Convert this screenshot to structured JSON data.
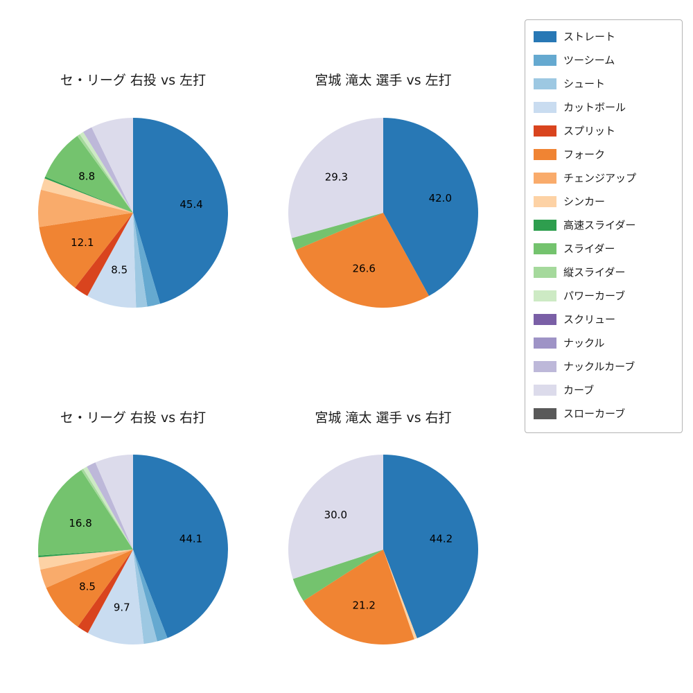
{
  "page": {
    "background": "#ffffff"
  },
  "legend": {
    "items": [
      {
        "label": "ストレート",
        "color": "#2878b5"
      },
      {
        "label": "ツーシーム",
        "color": "#65a9d0"
      },
      {
        "label": "シュート",
        "color": "#9dc8e2"
      },
      {
        "label": "カットボール",
        "color": "#c9dcf0"
      },
      {
        "label": "スプリット",
        "color": "#d9441e"
      },
      {
        "label": "フォーク",
        "color": "#f08433"
      },
      {
        "label": "チェンジアップ",
        "color": "#f9ab6b"
      },
      {
        "label": "シンカー",
        "color": "#fdd2a5"
      },
      {
        "label": "高速スライダー",
        "color": "#2e9e4e"
      },
      {
        "label": "スライダー",
        "color": "#74c36e"
      },
      {
        "label": "縦スライダー",
        "color": "#a5d99c"
      },
      {
        "label": "パワーカーブ",
        "color": "#cdeac4"
      },
      {
        "label": "スクリュー",
        "color": "#7a5fa6"
      },
      {
        "label": "ナックル",
        "color": "#9e93c6"
      },
      {
        "label": "ナックルカーブ",
        "color": "#bdb8d9"
      },
      {
        "label": "カーブ",
        "color": "#dcdbeb"
      },
      {
        "label": "スローカーブ",
        "color": "#595959"
      }
    ]
  },
  "chart_data": [
    {
      "type": "pie",
      "title": "セ・リーグ 右投 vs 左打",
      "start_angle": "top",
      "direction": "clockwise",
      "label_threshold": 8,
      "slices": [
        {
          "name": "ストレート",
          "value": 45.4
        },
        {
          "name": "ツーシーム",
          "value": 2.2
        },
        {
          "name": "シュート",
          "value": 1.9
        },
        {
          "name": "カットボール",
          "value": 8.5
        },
        {
          "name": "スプリット",
          "value": 2.5
        },
        {
          "name": "フォーク",
          "value": 12.1
        },
        {
          "name": "チェンジアップ",
          "value": 6.3
        },
        {
          "name": "シンカー",
          "value": 2.0
        },
        {
          "name": "高速スライダー",
          "value": 0.3
        },
        {
          "name": "スライダー",
          "value": 8.8
        },
        {
          "name": "縦スライダー",
          "value": 0.5
        },
        {
          "name": "パワーカーブ",
          "value": 0.7
        },
        {
          "name": "ナックルカーブ",
          "value": 1.6
        },
        {
          "name": "カーブ",
          "value": 7.2
        }
      ]
    },
    {
      "type": "pie",
      "title": "宮城 滝太 選手 vs 左打",
      "start_angle": "top",
      "direction": "clockwise",
      "label_threshold": 8,
      "slices": [
        {
          "name": "ストレート",
          "value": 42.0
        },
        {
          "name": "フォーク",
          "value": 26.6
        },
        {
          "name": "スライダー",
          "value": 2.1
        },
        {
          "name": "カーブ",
          "value": 29.3
        }
      ]
    },
    {
      "type": "pie",
      "title": "セ・リーグ 右投 vs 右打",
      "start_angle": "top",
      "direction": "clockwise",
      "label_threshold": 8,
      "slices": [
        {
          "name": "ストレート",
          "value": 44.1
        },
        {
          "name": "ツーシーム",
          "value": 1.8
        },
        {
          "name": "シュート",
          "value": 2.3
        },
        {
          "name": "カットボール",
          "value": 9.7
        },
        {
          "name": "スプリット",
          "value": 2.0
        },
        {
          "name": "フォーク",
          "value": 8.5
        },
        {
          "name": "チェンジアップ",
          "value": 3.2
        },
        {
          "name": "シンカー",
          "value": 2.1
        },
        {
          "name": "高速スライダー",
          "value": 0.3
        },
        {
          "name": "スライダー",
          "value": 16.8
        },
        {
          "name": "縦スライダー",
          "value": 0.4
        },
        {
          "name": "パワーカーブ",
          "value": 0.7
        },
        {
          "name": "ナックルカーブ",
          "value": 1.6
        },
        {
          "name": "カーブ",
          "value": 6.5
        }
      ]
    },
    {
      "type": "pie",
      "title": "宮城 滝太 選手 vs 右打",
      "start_angle": "top",
      "direction": "clockwise",
      "label_threshold": 8,
      "slices": [
        {
          "name": "ストレート",
          "value": 44.2
        },
        {
          "name": "シンカー",
          "value": 0.5
        },
        {
          "name": "フォーク",
          "value": 21.2
        },
        {
          "name": "スライダー",
          "value": 4.1
        },
        {
          "name": "カーブ",
          "value": 30.0
        }
      ]
    }
  ]
}
